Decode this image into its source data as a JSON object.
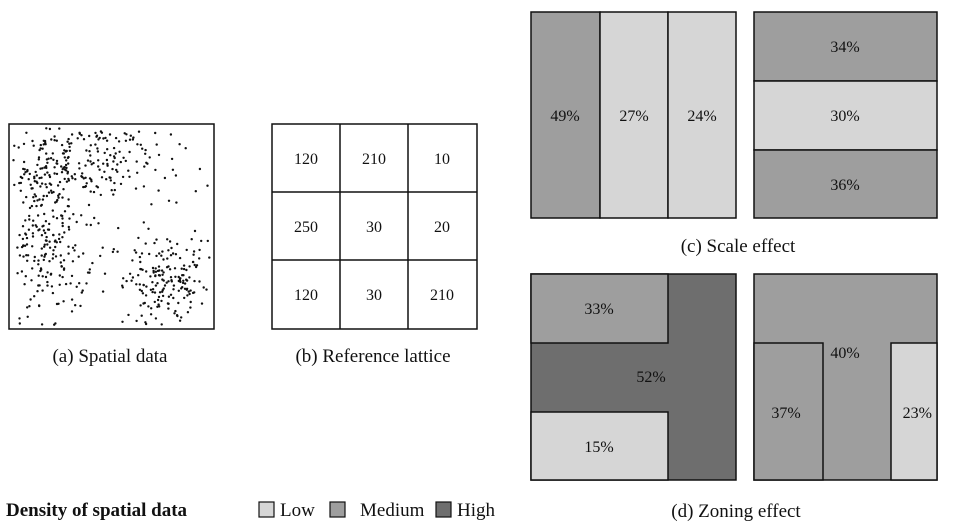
{
  "colors": {
    "low": "#d6d6d6",
    "medium": "#9e9e9e",
    "high": "#6e6e6e",
    "stroke": "#111111",
    "point": "#111111"
  },
  "spatial_data": {
    "caption": "(a) Spatial data"
  },
  "reference_lattice": {
    "caption": "(b) Reference lattice",
    "rows": [
      [
        "120",
        "210",
        "10"
      ],
      [
        "250",
        "30",
        "20"
      ],
      [
        "120",
        "30",
        "210"
      ]
    ]
  },
  "scale_effect": {
    "caption": "(c) Scale effect",
    "vertical_zones": [
      {
        "label": "49%",
        "density": "medium"
      },
      {
        "label": "27%",
        "density": "low"
      },
      {
        "label": "24%",
        "density": "low"
      }
    ],
    "horizontal_zones": [
      {
        "label": "34%",
        "density": "medium"
      },
      {
        "label": "30%",
        "density": "low"
      },
      {
        "label": "36%",
        "density": "medium"
      }
    ]
  },
  "zoning_effect": {
    "caption": "(d) Zoning effect",
    "left_zones": [
      {
        "label": "33%",
        "density": "medium"
      },
      {
        "label": "52%",
        "density": "high"
      },
      {
        "label": "15%",
        "density": "low"
      }
    ],
    "right_zones": [
      {
        "label": "40%",
        "density": "medium"
      },
      {
        "label": "37%",
        "density": "medium"
      },
      {
        "label": "23%",
        "density": "low"
      }
    ]
  },
  "legend": {
    "title": "Density of spatial data",
    "items": [
      {
        "label": "Low",
        "density": "low"
      },
      {
        "label": "Medium",
        "density": "medium"
      },
      {
        "label": "High",
        "density": "high"
      }
    ]
  }
}
